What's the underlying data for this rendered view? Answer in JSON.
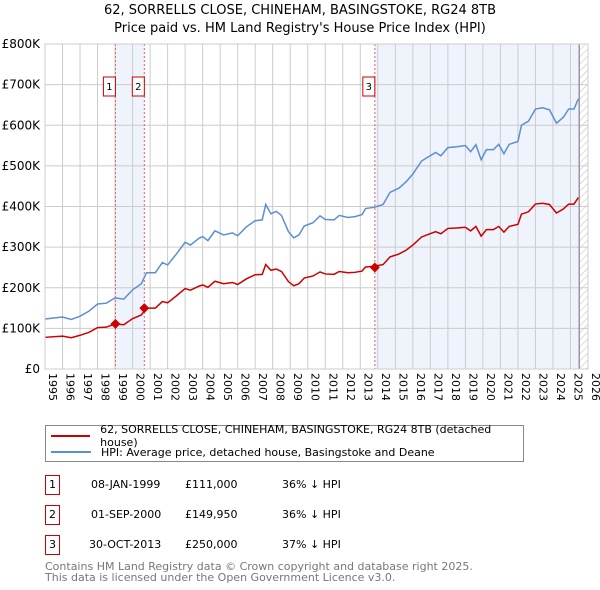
{
  "chart_data": {
    "type": "line",
    "title": "62, SORRELLS CLOSE, CHINEHAM, BASINGSTOKE, RG24 8TB",
    "subtitle": "Price paid vs. HM Land Registry's House Price Index (HPI)",
    "xlim": [
      1995,
      2026
    ],
    "ylim": [
      0,
      800000
    ],
    "y_ticks": [
      {
        "v": 0,
        "label": "£0"
      },
      {
        "v": 100000,
        "label": "£100K"
      },
      {
        "v": 200000,
        "label": "£200K"
      },
      {
        "v": 300000,
        "label": "£300K"
      },
      {
        "v": 400000,
        "label": "£400K"
      },
      {
        "v": 500000,
        "label": "£500K"
      },
      {
        "v": 600000,
        "label": "£600K"
      },
      {
        "v": 700000,
        "label": "£700K"
      },
      {
        "v": 800000,
        "label": "£800K"
      }
    ],
    "x_ticks": [
      1995,
      1996,
      1997,
      1998,
      1999,
      2000,
      2001,
      2002,
      2003,
      2004,
      2005,
      2006,
      2007,
      2008,
      2009,
      2010,
      2011,
      2012,
      2013,
      2014,
      2015,
      2016,
      2017,
      2018,
      2019,
      2020,
      2021,
      2022,
      2023,
      2024,
      2025,
      2026
    ],
    "grid": true,
    "x": [
      1995,
      1996,
      1996.5,
      1997,
      1997.5,
      1998,
      1998.5,
      1999,
      1999.5,
      2000,
      2000.5,
      2000.8,
      2001.3,
      2001.7,
      2002,
      2002.5,
      2003,
      2003.3,
      2003.8,
      2004,
      2004.3,
      2004.7,
      2005.2,
      2005.7,
      2006,
      2006.5,
      2007,
      2007.4,
      2007.6,
      2007.9,
      2008.2,
      2008.5,
      2008.9,
      2009.2,
      2009.5,
      2009.8,
      2010.3,
      2010.7,
      2011,
      2011.5,
      2011.8,
      2012.3,
      2012.7,
      2013.1,
      2013.3,
      2013.8,
      2014.3,
      2014.7,
      2015.2,
      2015.6,
      2016,
      2016.5,
      2016.8,
      2017.3,
      2017.6,
      2018,
      2018.5,
      2019,
      2019.3,
      2019.6,
      2019.9,
      2020.2,
      2020.6,
      2020.9,
      2021.2,
      2021.5,
      2022,
      2022.2,
      2022.6,
      2023,
      2023.4,
      2023.8,
      2024.2,
      2024.6,
      2024.9,
      2025.2,
      2025.45
    ],
    "series": [
      {
        "name": "62, SORRELLS CLOSE, CHINEHAM, BASINGSTOKE, RG24 8TB (detached house)",
        "color": "#cc0000",
        "values_k": [
          78,
          81,
          77,
          83,
          90,
          102,
          103,
          111,
          109,
          124,
          133,
          150,
          150,
          166,
          163,
          180,
          198,
          194,
          204,
          207,
          201,
          216,
          210,
          213,
          208,
          222,
          232,
          233,
          257,
          243,
          246,
          240,
          215,
          205,
          210,
          224,
          229,
          239,
          234,
          233,
          240,
          237,
          238,
          241,
          251,
          253,
          257,
          276,
          283,
          292,
          305,
          325,
          330,
          338,
          333,
          346,
          347,
          349,
          340,
          351,
          327,
          343,
          343,
          351,
          337,
          351,
          356,
          381,
          387,
          406,
          408,
          405,
          384,
          394,
          406,
          406,
          422
        ]
      },
      {
        "name": "HPI: Average price, detached house, Basingstoke and Deane",
        "color": "#5b8fd4",
        "values_k": [
          123,
          128,
          122,
          130,
          142,
          160,
          162,
          175,
          172,
          195,
          210,
          237,
          237,
          262,
          256,
          283,
          312,
          305,
          322,
          326,
          316,
          340,
          330,
          335,
          328,
          350,
          365,
          367,
          405,
          382,
          388,
          378,
          338,
          323,
          330,
          352,
          360,
          377,
          368,
          367,
          378,
          373,
          375,
          380,
          395,
          398,
          405,
          435,
          445,
          460,
          480,
          512,
          520,
          533,
          525,
          545,
          547,
          550,
          535,
          552,
          515,
          540,
          540,
          553,
          530,
          553,
          560,
          600,
          610,
          640,
          643,
          638,
          605,
          620,
          640,
          640,
          665
        ]
      }
    ],
    "transactions": [
      {
        "id": "1",
        "x": 1999.02,
        "date": "08-JAN-1999",
        "price": 111000,
        "price_label": "£111,000",
        "hpi": "36% ↓ HPI"
      },
      {
        "id": "2",
        "x": 2000.67,
        "date": "01-SEP-2000",
        "price": 149950,
        "price_label": "£149,950",
        "hpi": "36% ↓ HPI"
      },
      {
        "id": "3",
        "x": 2013.83,
        "date": "30-OCT-2013",
        "price": 250000,
        "price_label": "£250,000",
        "hpi": "37% ↓ HPI"
      }
    ],
    "data_end": 2025.5,
    "legend_position": "below"
  },
  "footer": [
    "Contains HM Land Registry data © Crown copyright and database right 2025.",
    "This data is licensed under the Open Government Licence v3.0."
  ]
}
